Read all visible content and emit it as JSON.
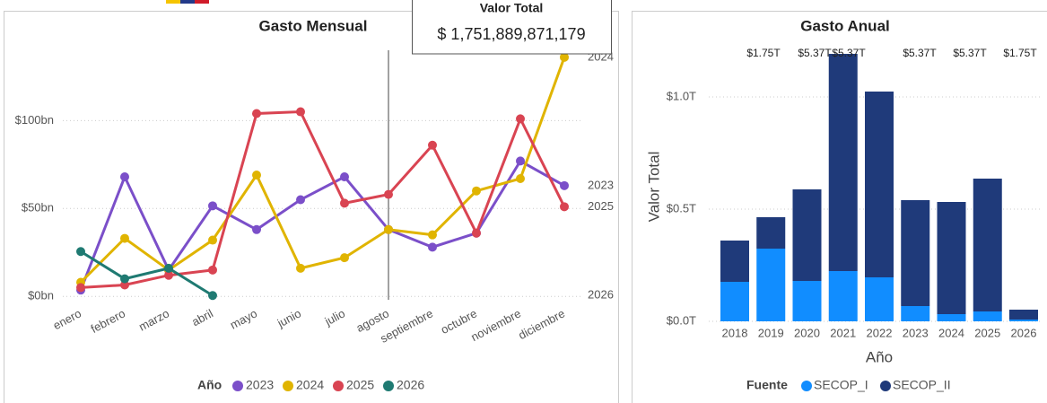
{
  "card": {
    "title": "Valor Total",
    "value": "$ 1,751,889,871,179"
  },
  "chart_data": [
    {
      "type": "line",
      "title": "Gasto Mensual",
      "categories": [
        "enero",
        "febrero",
        "marzo",
        "abril",
        "mayo",
        "junio",
        "julio",
        "agosto",
        "septiembre",
        "octubre",
        "noviembre",
        "diciembre"
      ],
      "ylim": [
        -5,
        140
      ],
      "yticks": [
        {
          "value": 0,
          "label": "$0bn"
        },
        {
          "value": 50,
          "label": "$50bn"
        },
        {
          "value": 100,
          "label": "$100bn"
        }
      ],
      "grid": true,
      "legend_title": "Año",
      "series": [
        {
          "name": "2023",
          "color": "#7b4fc9",
          "values": [
            3.6,
            68,
            15,
            51.5,
            38,
            55,
            68,
            38,
            28,
            36,
            77,
            63
          ]
        },
        {
          "name": "2024",
          "color": "#e0b400",
          "values": [
            8,
            33,
            15,
            32,
            69,
            16,
            22,
            38,
            35,
            60,
            67,
            136
          ]
        },
        {
          "name": "2025",
          "color": "#d94452",
          "values": [
            5,
            6.5,
            12,
            15,
            104,
            105,
            53,
            58,
            86,
            36,
            101,
            51
          ]
        },
        {
          "name": "2026",
          "color": "#1f7a72",
          "values": [
            25.5,
            10,
            16,
            0.5,
            null,
            null,
            null,
            null,
            null,
            null,
            null,
            null
          ]
        }
      ]
    },
    {
      "type": "stacked_bar",
      "title": "Gasto Anual",
      "x_label": "Año",
      "y_label": "Valor Total",
      "categories": [
        "2018",
        "2019",
        "2020",
        "2021",
        "2022",
        "2023",
        "2024",
        "2025",
        "2026"
      ],
      "ylim": [
        0,
        1.25
      ],
      "yticks": [
        {
          "value": 0,
          "label": "$0.0T"
        },
        {
          "value": 0.5,
          "label": "$0.5T"
        },
        {
          "value": 1.0,
          "label": "$1.0T"
        }
      ],
      "legend_title": "Fuente",
      "annotations": [
        "$1.75T",
        "$5.37T",
        "$5.37T",
        "$5.37T",
        "$5.37T",
        "$1.75T"
      ],
      "series": [
        {
          "name": "SECOP_I",
          "color": "#118dff",
          "values": [
            0.176,
            0.324,
            0.18,
            0.224,
            0.196,
            0.068,
            0.032,
            0.044,
            0.008
          ]
        },
        {
          "name": "SECOP_II",
          "color": "#1f3a7a",
          "values": [
            0.184,
            0.14,
            0.408,
            0.968,
            0.828,
            0.472,
            0.5,
            0.592,
            0.044
          ]
        }
      ]
    }
  ]
}
